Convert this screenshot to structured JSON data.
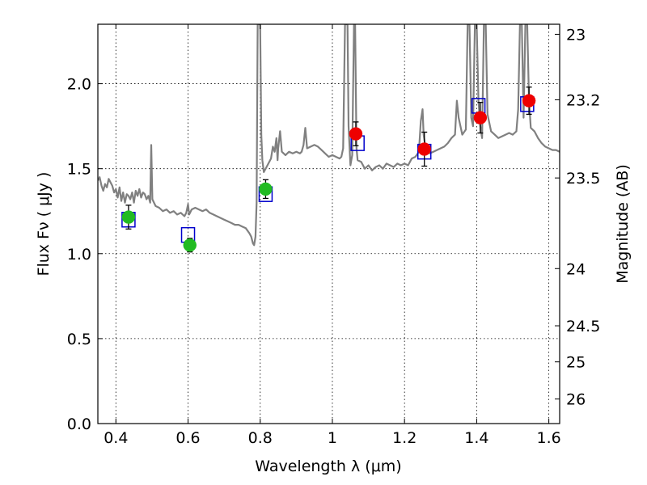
{
  "chart_data": {
    "type": "scatter",
    "xlabel": "Wavelength  λ (μm)",
    "ylabel_left": "Flux  Fν  ( μJy )",
    "ylabel_right": "Magnitude (AB)",
    "xlim": [
      0.35,
      1.63
    ],
    "ylim": [
      0.0,
      2.35
    ],
    "grid": true,
    "x_ticks": [
      {
        "value": 0.4,
        "label": "0.4"
      },
      {
        "value": 0.6,
        "label": "0.6"
      },
      {
        "value": 0.8,
        "label": "0.8"
      },
      {
        "value": 1.0,
        "label": "1"
      },
      {
        "value": 1.2,
        "label": "1.2"
      },
      {
        "value": 1.4,
        "label": "1.4"
      },
      {
        "value": 1.6,
        "label": "1.6"
      }
    ],
    "y_ticks": [
      {
        "value": 0.0,
        "label": "0.0"
      },
      {
        "value": 0.5,
        "label": "0.5"
      },
      {
        "value": 1.0,
        "label": "1.0"
      },
      {
        "value": 1.5,
        "label": "1.5"
      },
      {
        "value": 2.0,
        "label": "2.0"
      }
    ],
    "right_ticks": [
      {
        "value": 23,
        "label": "23"
      },
      {
        "value": 23.2,
        "label": "23.2"
      },
      {
        "value": 23.5,
        "label": "23.5"
      },
      {
        "value": 24,
        "label": "24"
      },
      {
        "value": 24.5,
        "label": "24.5"
      },
      {
        "value": 25,
        "label": "25"
      },
      {
        "value": 26,
        "label": "26"
      }
    ],
    "colors": {
      "spectrum": "#808080",
      "model_box": "#0000cc",
      "optical_point": "#22bb22",
      "nir_point": "#ee0000",
      "errorbar": "#000000"
    },
    "spectrum": [
      [
        0.35,
        1.43
      ],
      [
        0.355,
        1.45
      ],
      [
        0.36,
        1.4
      ],
      [
        0.365,
        1.37
      ],
      [
        0.37,
        1.41
      ],
      [
        0.375,
        1.39
      ],
      [
        0.38,
        1.44
      ],
      [
        0.385,
        1.42
      ],
      [
        0.39,
        1.4
      ],
      [
        0.395,
        1.36
      ],
      [
        0.4,
        1.38
      ],
      [
        0.405,
        1.33
      ],
      [
        0.41,
        1.39
      ],
      [
        0.415,
        1.31
      ],
      [
        0.42,
        1.36
      ],
      [
        0.425,
        1.3
      ],
      [
        0.43,
        1.35
      ],
      [
        0.435,
        1.34
      ],
      [
        0.44,
        1.32
      ],
      [
        0.445,
        1.36
      ],
      [
        0.45,
        1.3
      ],
      [
        0.455,
        1.37
      ],
      [
        0.46,
        1.34
      ],
      [
        0.465,
        1.38
      ],
      [
        0.47,
        1.33
      ],
      [
        0.475,
        1.36
      ],
      [
        0.48,
        1.35
      ],
      [
        0.485,
        1.32
      ],
      [
        0.49,
        1.34
      ],
      [
        0.495,
        1.3
      ],
      [
        0.498,
        1.64
      ],
      [
        0.501,
        1.32
      ],
      [
        0.51,
        1.28
      ],
      [
        0.52,
        1.27
      ],
      [
        0.53,
        1.25
      ],
      [
        0.54,
        1.26
      ],
      [
        0.55,
        1.24
      ],
      [
        0.56,
        1.25
      ],
      [
        0.57,
        1.23
      ],
      [
        0.58,
        1.24
      ],
      [
        0.59,
        1.22
      ],
      [
        0.595,
        1.24
      ],
      [
        0.6,
        1.29
      ],
      [
        0.603,
        1.23
      ],
      [
        0.61,
        1.26
      ],
      [
        0.62,
        1.27
      ],
      [
        0.63,
        1.26
      ],
      [
        0.64,
        1.25
      ],
      [
        0.65,
        1.26
      ],
      [
        0.66,
        1.24
      ],
      [
        0.67,
        1.23
      ],
      [
        0.68,
        1.22
      ],
      [
        0.69,
        1.21
      ],
      [
        0.7,
        1.2
      ],
      [
        0.71,
        1.19
      ],
      [
        0.72,
        1.18
      ],
      [
        0.73,
        1.17
      ],
      [
        0.74,
        1.17
      ],
      [
        0.75,
        1.16
      ],
      [
        0.76,
        1.15
      ],
      [
        0.77,
        1.12
      ],
      [
        0.775,
        1.1
      ],
      [
        0.78,
        1.06
      ],
      [
        0.783,
        1.05
      ],
      [
        0.787,
        1.1
      ],
      [
        0.79,
        1.3
      ],
      [
        0.793,
        2.35
      ],
      [
        0.8,
        2.35
      ],
      [
        0.803,
        1.7
      ],
      [
        0.806,
        1.55
      ],
      [
        0.81,
        1.48
      ],
      [
        0.82,
        1.52
      ],
      [
        0.83,
        1.56
      ],
      [
        0.835,
        1.63
      ],
      [
        0.84,
        1.6
      ],
      [
        0.845,
        1.68
      ],
      [
        0.848,
        1.55
      ],
      [
        0.85,
        1.62
      ],
      [
        0.855,
        1.72
      ],
      [
        0.86,
        1.6
      ],
      [
        0.87,
        1.58
      ],
      [
        0.88,
        1.6
      ],
      [
        0.89,
        1.59
      ],
      [
        0.9,
        1.6
      ],
      [
        0.91,
        1.59
      ],
      [
        0.915,
        1.6
      ],
      [
        0.92,
        1.64
      ],
      [
        0.925,
        1.74
      ],
      [
        0.93,
        1.62
      ],
      [
        0.94,
        1.63
      ],
      [
        0.95,
        1.64
      ],
      [
        0.96,
        1.63
      ],
      [
        0.97,
        1.61
      ],
      [
        0.98,
        1.59
      ],
      [
        0.99,
        1.57
      ],
      [
        1.0,
        1.58
      ],
      [
        1.01,
        1.57
      ],
      [
        1.02,
        1.56
      ],
      [
        1.025,
        1.57
      ],
      [
        1.03,
        1.62
      ],
      [
        1.035,
        2.35
      ],
      [
        1.042,
        2.35
      ],
      [
        1.045,
        1.75
      ],
      [
        1.05,
        1.52
      ],
      [
        1.055,
        1.58
      ],
      [
        1.06,
        2.35
      ],
      [
        1.063,
        2.35
      ],
      [
        1.067,
        1.62
      ],
      [
        1.07,
        1.55
      ],
      [
        1.08,
        1.54
      ],
      [
        1.09,
        1.5
      ],
      [
        1.1,
        1.52
      ],
      [
        1.11,
        1.49
      ],
      [
        1.12,
        1.51
      ],
      [
        1.13,
        1.52
      ],
      [
        1.14,
        1.5
      ],
      [
        1.15,
        1.53
      ],
      [
        1.16,
        1.52
      ],
      [
        1.17,
        1.51
      ],
      [
        1.18,
        1.53
      ],
      [
        1.19,
        1.52
      ],
      [
        1.2,
        1.53
      ],
      [
        1.21,
        1.52
      ],
      [
        1.22,
        1.56
      ],
      [
        1.23,
        1.57
      ],
      [
        1.24,
        1.6
      ],
      [
        1.245,
        1.78
      ],
      [
        1.25,
        1.85
      ],
      [
        1.253,
        1.7
      ],
      [
        1.26,
        1.6
      ],
      [
        1.27,
        1.59
      ],
      [
        1.28,
        1.6
      ],
      [
        1.29,
        1.61
      ],
      [
        1.3,
        1.62
      ],
      [
        1.31,
        1.63
      ],
      [
        1.32,
        1.65
      ],
      [
        1.33,
        1.68
      ],
      [
        1.34,
        1.7
      ],
      [
        1.345,
        1.9
      ],
      [
        1.35,
        1.8
      ],
      [
        1.36,
        1.7
      ],
      [
        1.37,
        1.73
      ],
      [
        1.375,
        2.35
      ],
      [
        1.38,
        2.35
      ],
      [
        1.385,
        1.8
      ],
      [
        1.39,
        1.75
      ],
      [
        1.395,
        2.35
      ],
      [
        1.4,
        2.35
      ],
      [
        1.405,
        1.9
      ],
      [
        1.41,
        1.75
      ],
      [
        1.415,
        1.68
      ],
      [
        1.42,
        2.35
      ],
      [
        1.425,
        2.35
      ],
      [
        1.43,
        1.82
      ],
      [
        1.44,
        1.72
      ],
      [
        1.45,
        1.7
      ],
      [
        1.46,
        1.68
      ],
      [
        1.47,
        1.69
      ],
      [
        1.48,
        1.7
      ],
      [
        1.49,
        1.71
      ],
      [
        1.5,
        1.7
      ],
      [
        1.51,
        1.72
      ],
      [
        1.515,
        1.85
      ],
      [
        1.52,
        2.35
      ],
      [
        1.525,
        2.35
      ],
      [
        1.53,
        1.8
      ],
      [
        1.535,
        2.35
      ],
      [
        1.54,
        2.35
      ],
      [
        1.545,
        1.9
      ],
      [
        1.55,
        1.74
      ],
      [
        1.56,
        1.72
      ],
      [
        1.57,
        1.68
      ],
      [
        1.58,
        1.65
      ],
      [
        1.59,
        1.63
      ],
      [
        1.6,
        1.62
      ],
      [
        1.61,
        1.61
      ],
      [
        1.62,
        1.61
      ],
      [
        1.63,
        1.6
      ]
    ],
    "model_boxes": [
      {
        "x": 0.435,
        "y": 1.2
      },
      {
        "x": 0.6,
        "y": 1.11
      },
      {
        "x": 0.815,
        "y": 1.35
      },
      {
        "x": 1.07,
        "y": 1.65
      },
      {
        "x": 1.255,
        "y": 1.6
      },
      {
        "x": 1.405,
        "y": 1.87
      },
      {
        "x": 1.54,
        "y": 1.88
      }
    ],
    "points": [
      {
        "x": 0.435,
        "y": 1.215,
        "err": 0.07,
        "band": "optical"
      },
      {
        "x": 0.605,
        "y": 1.05,
        "err": 0.04,
        "band": "optical"
      },
      {
        "x": 0.815,
        "y": 1.38,
        "err": 0.055,
        "band": "optical"
      },
      {
        "x": 1.065,
        "y": 1.705,
        "err": 0.07,
        "band": "nir"
      },
      {
        "x": 1.255,
        "y": 1.615,
        "err": 0.1,
        "band": "nir"
      },
      {
        "x": 1.41,
        "y": 1.8,
        "err": 0.09,
        "band": "nir"
      },
      {
        "x": 1.545,
        "y": 1.9,
        "err": 0.08,
        "band": "nir"
      }
    ]
  }
}
